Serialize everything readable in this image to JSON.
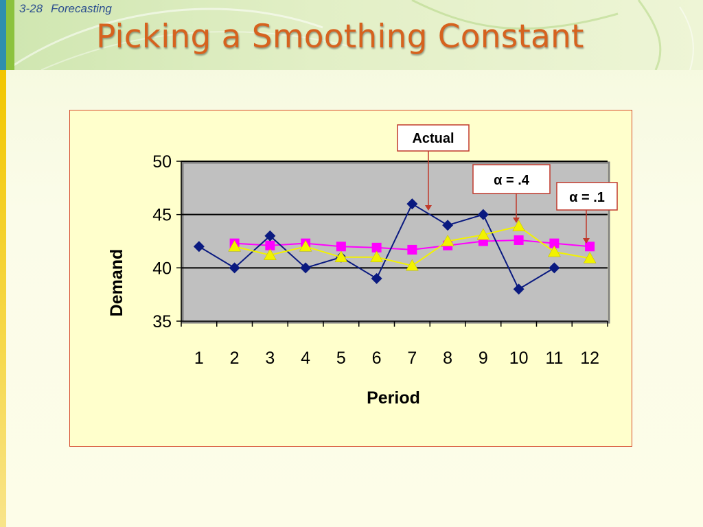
{
  "slide": {
    "number": "3-28",
    "section": "Forecasting",
    "title": "Picking a Smoothing Constant"
  },
  "callouts": {
    "actual": "Actual",
    "alpha_04": "α = .4",
    "alpha_01": "α = .1"
  },
  "colors": {
    "title": "#d6621e",
    "actual": "#0a1a80",
    "alpha_01": "#ff00ff",
    "alpha_04": "#f2f200",
    "plot_bg": "#c0c0c0",
    "chart_bg": "#ffffcc",
    "callout_border": "#c0392b"
  },
  "chart_data": {
    "type": "line",
    "title": "",
    "xlabel": "Period",
    "ylabel": "Demand",
    "categories": [
      "1",
      "2",
      "3",
      "4",
      "5",
      "6",
      "7",
      "8",
      "9",
      "10",
      "11",
      "12"
    ],
    "ylim": [
      35,
      50
    ],
    "yticks": [
      "35",
      "40",
      "45",
      "50"
    ],
    "gridlines_y": [
      40,
      45,
      50
    ],
    "series": [
      {
        "key": "actual",
        "marker": "diamond",
        "x": [
          1,
          2,
          3,
          4,
          5,
          6,
          7,
          8,
          9,
          10,
          11
        ],
        "values": [
          42,
          40,
          43,
          40,
          41,
          39,
          46,
          44,
          45,
          38,
          40
        ]
      },
      {
        "key": "alpha_01",
        "marker": "square",
        "x": [
          2,
          3,
          4,
          5,
          6,
          7,
          8,
          9,
          10,
          11,
          12
        ],
        "values": [
          42.3,
          42.1,
          42.3,
          42.0,
          41.9,
          41.7,
          42.1,
          42.5,
          42.6,
          42.3,
          42.0
        ]
      },
      {
        "key": "alpha_04",
        "marker": "triangle",
        "x": [
          2,
          3,
          4,
          5,
          6,
          7,
          8,
          9,
          10,
          11,
          12
        ],
        "values": [
          42.0,
          41.2,
          42.0,
          41.0,
          41.0,
          40.2,
          42.5,
          43.1,
          43.9,
          41.5,
          40.9
        ]
      }
    ]
  }
}
